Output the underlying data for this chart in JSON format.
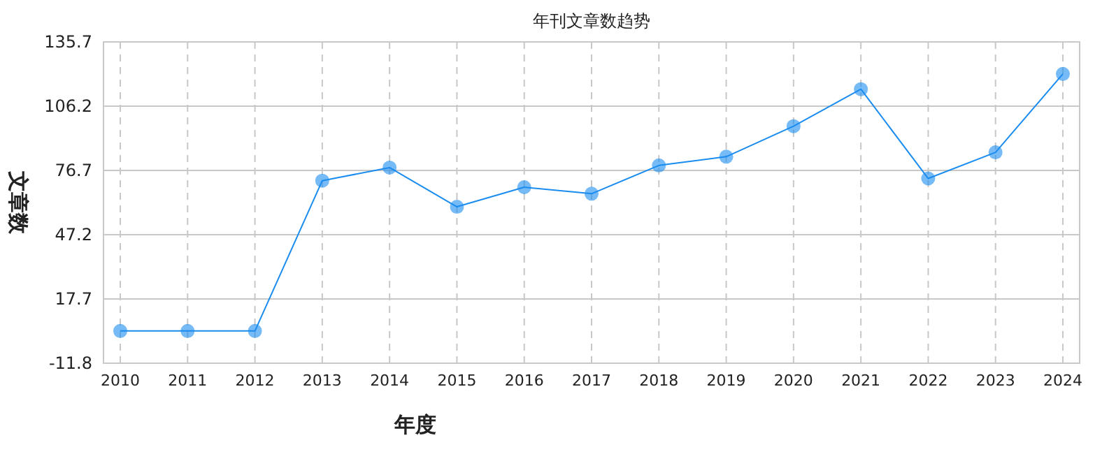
{
  "chart_data": {
    "type": "line",
    "title": "年刊文章数趋势",
    "xlabel": "年度",
    "ylabel": "文章数",
    "categories": [
      "2010",
      "2011",
      "2012",
      "2013",
      "2014",
      "2015",
      "2016",
      "2017",
      "2018",
      "2019",
      "2020",
      "2021",
      "2022",
      "2023",
      "2024"
    ],
    "series": [
      {
        "color": "#1a8cf0",
        "values": [
          3,
          3,
          3,
          72,
          78,
          60,
          69,
          66,
          79,
          83,
          97,
          114,
          73,
          85,
          121
        ]
      }
    ],
    "ylim": [
      -11.8,
      135.7
    ],
    "yticks": [
      -11.8,
      17.7,
      47.2,
      76.7,
      106.2,
      135.7
    ],
    "grid": true,
    "marker": "circle",
    "line_style": "solid"
  }
}
